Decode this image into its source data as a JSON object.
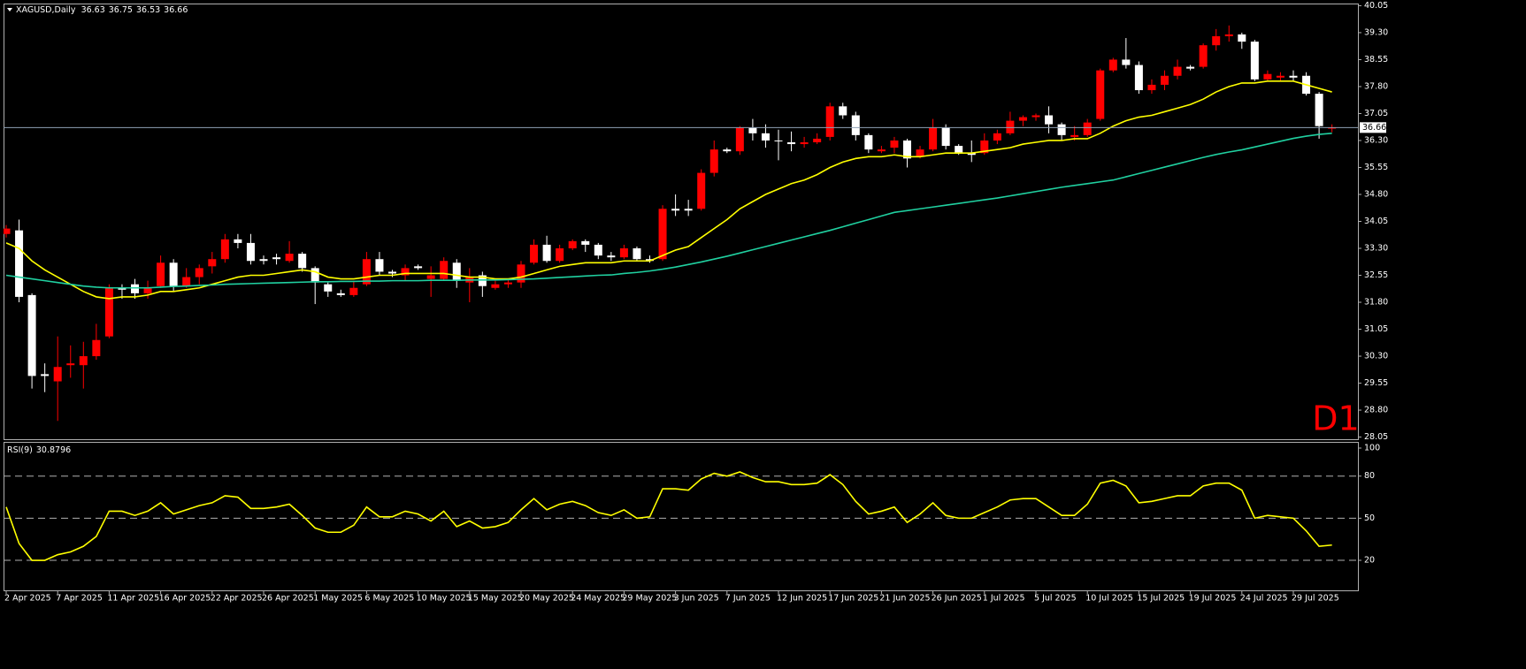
{
  "chart_data": [
    {
      "type": "candlestick",
      "title": "XAGUSD,Daily",
      "categories": [
        "2 Apr 2025",
        null,
        null,
        null,
        "7 Apr 2025",
        null,
        null,
        null,
        "11 Apr 2025",
        null,
        null,
        null,
        "16 Apr 2025",
        null,
        null,
        null,
        "22 Apr 2025",
        null,
        null,
        null,
        "26 Apr 2025",
        null,
        null,
        null,
        "1 May 2025",
        null,
        null,
        null,
        "6 May 2025",
        null,
        null,
        null,
        "10 May 2025",
        null,
        null,
        null,
        "15 May 2025",
        null,
        null,
        null,
        "20 May 2025",
        null,
        null,
        null,
        "24 May 2025",
        null,
        null,
        null,
        "29 May 2025",
        null,
        null,
        null,
        "3 Jun 2025",
        null,
        null,
        null,
        "7 Jun 2025",
        null,
        null,
        null,
        "12 Jun 2025",
        null,
        null,
        null,
        "17 Jun 2025",
        null,
        null,
        null,
        "21 Jun 2025",
        null,
        null,
        null,
        "26 Jun 2025",
        null,
        null,
        null,
        "1 Jul 2025",
        null,
        null,
        null,
        "5 Jul 2025",
        null,
        null,
        null,
        "10 Jul 2025",
        null,
        null,
        null,
        "15 Jul 2025",
        null,
        null,
        null,
        "19 Jul 2025",
        null,
        null,
        null,
        "24 Jul 2025",
        null,
        null,
        null,
        "29 Jul 2025",
        null,
        null,
        null
      ],
      "open": [
        33.7,
        33.8,
        32,
        29.8,
        29.6,
        30.05,
        30.05,
        30.3,
        30.85,
        32.2,
        32.3,
        32.05,
        32.25,
        32.9,
        32.25,
        32.5,
        32.8,
        33,
        33.55,
        33.45,
        33,
        33.05,
        32.95,
        33.15,
        32.75,
        32.3,
        32.05,
        32,
        32.3,
        33,
        32.65,
        32.55,
        32.8,
        32.45,
        32.45,
        32.9,
        32.35,
        32.55,
        32.2,
        32.3,
        32.35,
        32.9,
        33.4,
        32.95,
        33.3,
        33.5,
        33.4,
        33.1,
        33.05,
        33.3,
        33,
        33,
        34.4,
        34.4,
        34.4,
        35.4,
        36.05,
        36,
        36.65,
        36.5,
        36.3,
        36.25,
        36.2,
        36.25,
        36.4,
        37.25,
        37,
        36.45,
        36,
        36.1,
        36.3,
        35.85,
        36.05,
        36.65,
        36.15,
        35.95,
        35.95,
        36.3,
        36.5,
        36.85,
        36.95,
        37,
        36.75,
        36.4,
        36.45,
        36.9,
        38.25,
        38.55,
        38.4,
        37.7,
        37.85,
        38.1,
        38.35,
        38.35,
        38.95,
        39.2,
        39.25,
        39.05,
        38,
        38.05,
        38.1,
        38.1,
        37.6,
        36.63
      ],
      "high": [
        33.95,
        34.1,
        32.05,
        30.1,
        30.85,
        30.6,
        30.7,
        31.2,
        32.3,
        32.3,
        32.45,
        32.4,
        33.1,
        33,
        32.75,
        32.85,
        33.2,
        33.7,
        33.7,
        33.7,
        33.1,
        33.15,
        33.5,
        33.2,
        32.8,
        32.35,
        32.15,
        32.4,
        33.2,
        33.2,
        32.7,
        32.85,
        32.85,
        32.8,
        33.05,
        33,
        32.75,
        32.65,
        32.4,
        32.45,
        32.95,
        33.55,
        33.65,
        33.4,
        33.55,
        33.55,
        33.45,
        33.2,
        33.4,
        33.35,
        33.1,
        34.5,
        34.8,
        34.65,
        35.5,
        36.3,
        36.1,
        36.7,
        36.9,
        36.75,
        36.6,
        36.55,
        36.4,
        36.5,
        37.35,
        37.35,
        37.1,
        36.5,
        36.15,
        36.4,
        36.35,
        36.15,
        36.9,
        36.75,
        36.2,
        36.3,
        36.5,
        36.6,
        37.1,
        37,
        37.05,
        37.25,
        36.8,
        36.7,
        36.9,
        38.3,
        38.6,
        39.15,
        38.5,
        38,
        38.25,
        38.55,
        38.4,
        39,
        39.4,
        39.5,
        39.3,
        39.1,
        38.25,
        38.2,
        38.25,
        38.2,
        37.65,
        36.75
      ],
      "low": [
        33.6,
        31.8,
        29.4,
        29.3,
        28.5,
        29.7,
        29.4,
        30.2,
        30.8,
        31.9,
        31.9,
        31.9,
        32.2,
        32.1,
        32.2,
        32.3,
        32.6,
        32.9,
        33.3,
        32.85,
        32.85,
        32.85,
        32.9,
        32.65,
        31.75,
        31.95,
        31.95,
        31.95,
        32.25,
        32.55,
        32.5,
        32.4,
        32.7,
        31.95,
        32.4,
        32.2,
        31.8,
        31.95,
        32.15,
        32.2,
        32.2,
        32.85,
        32.9,
        32.9,
        33.25,
        33.2,
        33,
        32.95,
        33,
        32.95,
        32.9,
        32.95,
        34.2,
        34.2,
        34.35,
        35.3,
        35.95,
        35.9,
        36.3,
        36.1,
        35.75,
        36,
        36.1,
        36.2,
        36.3,
        36.9,
        36.3,
        35.95,
        35.95,
        35.95,
        35.55,
        35.8,
        36,
        36.05,
        35.9,
        35.7,
        35.9,
        36.2,
        36.45,
        36.7,
        36.85,
        36.5,
        36.3,
        36.3,
        36.4,
        36.85,
        38.2,
        38.3,
        37.6,
        37.6,
        37.7,
        38,
        38.25,
        38.3,
        38.8,
        39.05,
        38.85,
        37.95,
        37.95,
        37.95,
        37.95,
        37.55,
        36.35,
        36.53
      ],
      "close": [
        33.85,
        31.95,
        29.75,
        29.75,
        30,
        30.1,
        30.3,
        30.75,
        32.2,
        32.15,
        32.05,
        32.2,
        32.9,
        32.25,
        32.5,
        32.75,
        33,
        33.55,
        33.45,
        32.95,
        32.95,
        33,
        33.15,
        32.75,
        32.35,
        32.1,
        32,
        32.2,
        33,
        32.65,
        32.6,
        32.75,
        32.75,
        32.55,
        32.95,
        32.4,
        32.5,
        32.25,
        32.3,
        32.35,
        32.85,
        33.4,
        32.95,
        33.3,
        33.5,
        33.4,
        33.1,
        33.05,
        33.3,
        33,
        32.95,
        34.4,
        34.35,
        34.35,
        35.4,
        36.05,
        36,
        36.65,
        36.5,
        36.3,
        36.28,
        36.2,
        36.25,
        36.35,
        37.25,
        37,
        36.45,
        36.05,
        36.05,
        36.3,
        35.8,
        36.05,
        36.65,
        36.15,
        35.95,
        35.9,
        36.3,
        36.5,
        36.85,
        36.95,
        37,
        36.75,
        36.45,
        36.45,
        36.8,
        38.25,
        38.55,
        38.4,
        37.7,
        37.85,
        38.1,
        38.35,
        38.3,
        38.95,
        39.2,
        39.25,
        39.05,
        38,
        38.15,
        38.1,
        38.05,
        37.6,
        36.7,
        36.66
      ],
      "up_color": "#ff0000",
      "down_color": "#ffffff",
      "series": [
        {
          "color": "#ffff00",
          "values": [
            33.45,
            33.3,
            32.95,
            32.7,
            32.5,
            32.3,
            32.1,
            31.95,
            31.9,
            31.95,
            31.95,
            32,
            32.1,
            32.1,
            32.15,
            32.2,
            32.3,
            32.4,
            32.5,
            32.55,
            32.55,
            32.6,
            32.65,
            32.7,
            32.65,
            32.5,
            32.45,
            32.45,
            32.5,
            32.55,
            32.55,
            32.6,
            32.6,
            32.6,
            32.6,
            32.55,
            32.5,
            32.5,
            32.45,
            32.45,
            32.5,
            32.6,
            32.7,
            32.8,
            32.85,
            32.9,
            32.9,
            32.9,
            32.95,
            32.95,
            32.95,
            33.1,
            33.25,
            33.35,
            33.6,
            33.85,
            34.1,
            34.4,
            34.6,
            34.8,
            34.95,
            35.1,
            35.2,
            35.35,
            35.55,
            35.7,
            35.8,
            35.85,
            35.85,
            35.9,
            35.85,
            35.85,
            35.9,
            35.95,
            35.95,
            35.95,
            36,
            36.05,
            36.1,
            36.2,
            36.25,
            36.3,
            36.3,
            36.35,
            36.35,
            36.5,
            36.7,
            36.85,
            36.95,
            37,
            37.1,
            37.2,
            37.3,
            37.45,
            37.65,
            37.8,
            37.9,
            37.9,
            37.95,
            37.95,
            37.95,
            37.85,
            37.75,
            37.65
          ]
        },
        {
          "color": "#20d0a0",
          "values": [
            32.55,
            32.5,
            32.45,
            32.4,
            32.35,
            32.3,
            32.25,
            32.22,
            32.2,
            32.2,
            32.2,
            32.2,
            32.22,
            32.24,
            32.25,
            32.27,
            32.28,
            32.3,
            32.31,
            32.32,
            32.33,
            32.34,
            32.35,
            32.36,
            32.37,
            32.37,
            32.38,
            32.38,
            32.39,
            32.39,
            32.4,
            32.4,
            32.4,
            32.41,
            32.41,
            32.41,
            32.42,
            32.42,
            32.42,
            32.43,
            32.44,
            32.45,
            32.47,
            32.49,
            32.51,
            32.53,
            32.55,
            32.56,
            32.6,
            32.63,
            32.67,
            32.72,
            32.78,
            32.85,
            32.92,
            33,
            33.08,
            33.17,
            33.26,
            33.35,
            33.44,
            33.53,
            33.62,
            33.71,
            33.8,
            33.9,
            34,
            34.1,
            34.2,
            34.3,
            34.35,
            34.4,
            34.45,
            34.5,
            34.55,
            34.6,
            34.65,
            34.7,
            34.76,
            34.82,
            34.88,
            34.94,
            35,
            35.05,
            35.1,
            35.15,
            35.2,
            35.29,
            35.38,
            35.47,
            35.56,
            35.65,
            35.74,
            35.83,
            35.91,
            35.98,
            36.04,
            36.12,
            36.2,
            36.28,
            36.36,
            36.42,
            36.47,
            36.5
          ]
        }
      ],
      "ylim": [
        27.99,
        40.11
      ],
      "yticks": [
        40.05,
        {
          "value": 39.3,
          "label": "39.30"
        },
        {
          "value": 38.55,
          "label": "38.55"
        },
        {
          "value": 37.8,
          "label": "37.80"
        },
        37.05,
        {
          "value": 36.3,
          "label": "36.30"
        },
        35.55,
        {
          "value": 34.8,
          "label": "34.80"
        },
        34.05,
        {
          "value": 33.3,
          "label": "33.30"
        },
        32.55,
        {
          "value": 31.8,
          "label": "31.80"
        },
        31.05,
        {
          "value": 30.3,
          "label": "30.30"
        },
        29.55,
        {
          "value": 28.8,
          "label": "28.80"
        },
        28.05
      ],
      "annotation": "D1",
      "annotation_color": "#ff0000"
    },
    {
      "type": "line",
      "title": "RSI(9)",
      "values": [
        58,
        32,
        20,
        20,
        24,
        26,
        30,
        37,
        55,
        55,
        52,
        55,
        61,
        53,
        56,
        59,
        61,
        66,
        65,
        57,
        57,
        58,
        60,
        52,
        43,
        40,
        40,
        45,
        58,
        51,
        51,
        55,
        53,
        48,
        55,
        44,
        48,
        43,
        44,
        47,
        56,
        64,
        56,
        60,
        62,
        59,
        54,
        52,
        56,
        50,
        51,
        71,
        71,
        70,
        78,
        82,
        80,
        83,
        79,
        76,
        76,
        74,
        74,
        75,
        81,
        74,
        62,
        53,
        55,
        58,
        47,
        53,
        61,
        52,
        50,
        50,
        54,
        58,
        63,
        64,
        64,
        58,
        52,
        52,
        60,
        75,
        77,
        73,
        61,
        62,
        64,
        66,
        66,
        73,
        75,
        75,
        70,
        50,
        52,
        51,
        50,
        41,
        30,
        30.8796
      ],
      "color": "#ffff00",
      "ylim": [
        -1.4,
        104.4
      ],
      "yticks": [
        20,
        50,
        80,
        100
      ],
      "levels": [
        20,
        50,
        80
      ]
    }
  ]
}
